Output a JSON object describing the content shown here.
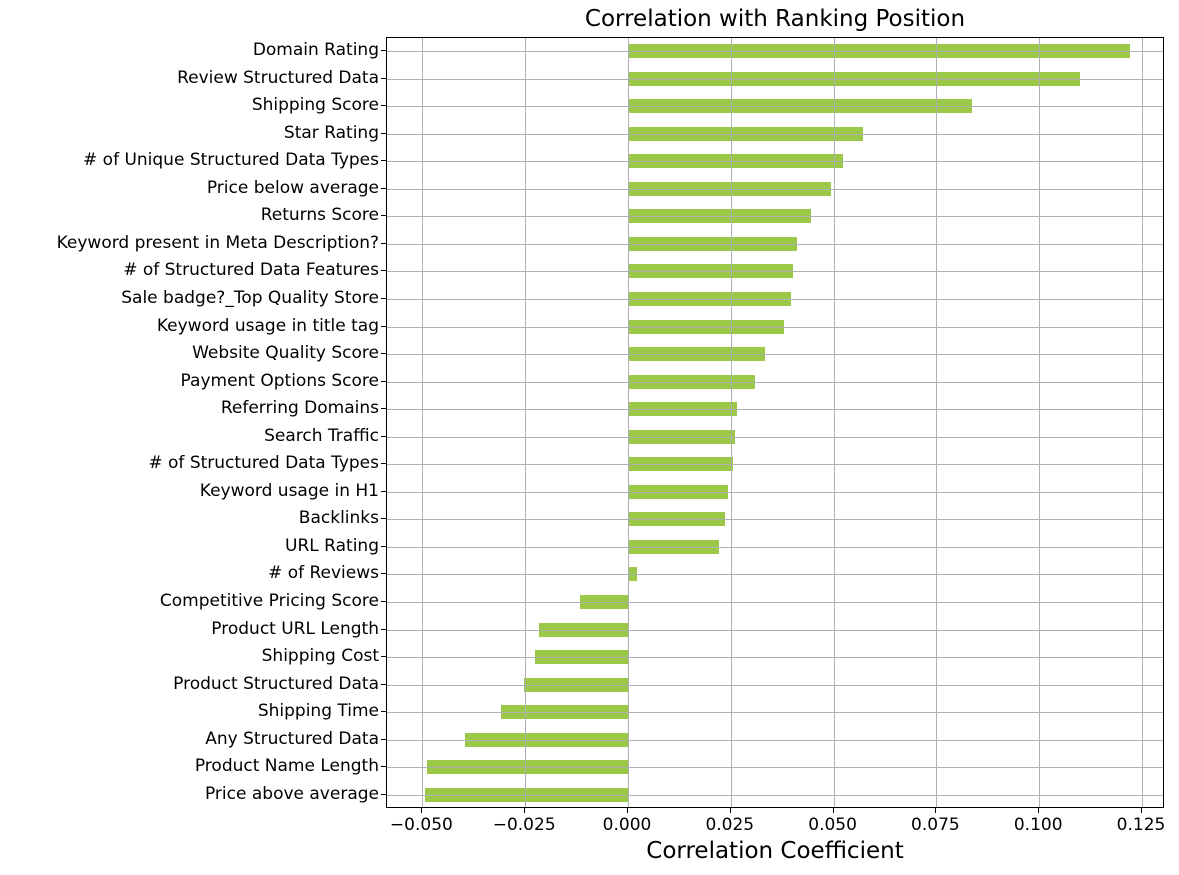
{
  "chart_data": {
    "type": "bar",
    "orientation": "horizontal",
    "title": "Correlation with Ranking Position",
    "xlabel": "Correlation Coefficient",
    "ylabel": "",
    "xlim": [
      -0.059,
      0.13
    ],
    "xticks": [
      "−0.050",
      "−0.025",
      "0.000",
      "0.025",
      "0.050",
      "0.075",
      "0.100",
      "0.125"
    ],
    "xtick_values": [
      -0.05,
      -0.025,
      0.0,
      0.025,
      0.05,
      0.075,
      0.1,
      0.125
    ],
    "grid": true,
    "legend": null,
    "bar_color": "#9bc846",
    "categories": [
      "Domain Rating",
      "Review Structured Data",
      "Shipping Score",
      "Star Rating",
      "# of Unique Structured Data Types",
      "Price below average",
      "Returns Score",
      "Keyword present in Meta Description?",
      "# of Structured Data Features",
      "Sale badge?_Top Quality Store",
      "Keyword usage in title tag",
      "Website Quality Score",
      "Payment Options Score",
      "Referring Domains",
      "Search Traffic",
      "# of Structured Data Types",
      "Keyword usage in H1",
      "Backlinks",
      "URL Rating",
      "# of Reviews",
      "Competitive Pricing Score",
      "Product URL Length",
      "Shipping Cost",
      "Product Structured Data",
      "Shipping Time",
      "Any Structured Data",
      "Product Name Length",
      "Price above average"
    ],
    "values": [
      0.122,
      0.11,
      0.0837,
      0.0572,
      0.0523,
      0.0494,
      0.0445,
      0.0411,
      0.0401,
      0.0396,
      0.0379,
      0.0333,
      0.0309,
      0.0265,
      0.026,
      0.0255,
      0.0243,
      0.0236,
      0.0221,
      0.0022,
      -0.0117,
      -0.0216,
      -0.0226,
      -0.0253,
      -0.0309,
      -0.0396,
      -0.0489,
      -0.0494
    ]
  }
}
